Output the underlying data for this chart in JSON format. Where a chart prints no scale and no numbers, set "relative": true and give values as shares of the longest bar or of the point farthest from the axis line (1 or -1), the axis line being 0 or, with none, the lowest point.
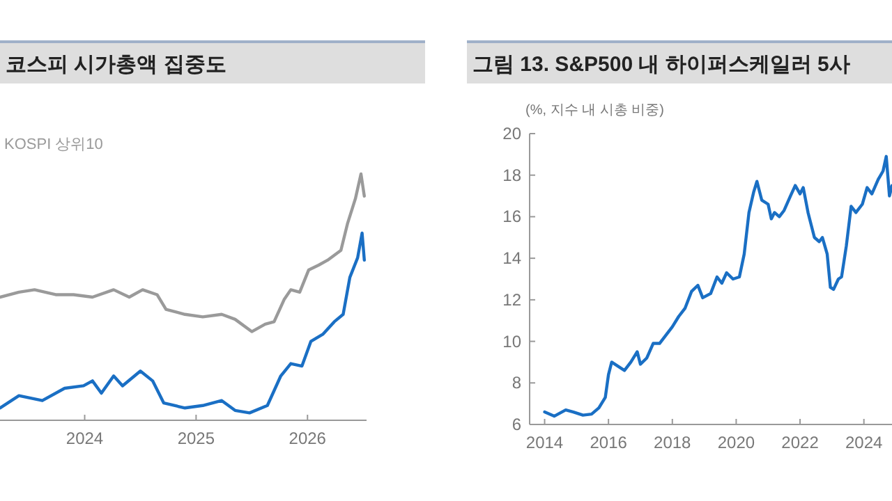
{
  "chart_data": [
    {
      "type": "line",
      "title": "코스피 시가총액 집중도",
      "relative": true,
      "legend": "top left",
      "xlim": [
        2023.24,
        2026.53
      ],
      "xticks": [
        2024,
        2025,
        2026
      ],
      "series": [
        {
          "name": "KOSPI 상위10",
          "color": "#9a9a9a",
          "x": [
            2023.24,
            2023.41,
            2023.55,
            2023.74,
            2023.9,
            2024.07,
            2024.26,
            2024.4,
            2024.52,
            2024.65,
            2024.73,
            2024.9,
            2025.06,
            2025.23,
            2025.35,
            2025.5,
            2025.62,
            2025.7,
            2025.79,
            2025.85,
            2025.93,
            2026.01,
            2026.1,
            2026.18,
            2026.3,
            2026.36,
            2026.43,
            2026.48,
            2026.51
          ],
          "values": [
            0.5,
            0.52,
            0.53,
            0.51,
            0.51,
            0.5,
            0.53,
            0.5,
            0.53,
            0.51,
            0.45,
            0.43,
            0.42,
            0.43,
            0.41,
            0.36,
            0.39,
            0.4,
            0.49,
            0.53,
            0.52,
            0.61,
            0.63,
            0.65,
            0.69,
            0.8,
            0.9,
            1,
            0.91
          ]
        },
        {
          "color": "#1a6fc4",
          "x": [
            2023.24,
            2023.41,
            2023.62,
            2023.82,
            2023.99,
            2024.07,
            2024.15,
            2024.26,
            2024.34,
            2024.5,
            2024.61,
            2024.71,
            2024.9,
            2025.06,
            2025.23,
            2025.35,
            2025.48,
            2025.64,
            2025.76,
            2025.85,
            2025.95,
            2026.03,
            2026.14,
            2026.24,
            2026.32,
            2026.38,
            2026.45,
            2026.49,
            2026.51
          ],
          "values": [
            0.05,
            0.1,
            0.08,
            0.13,
            0.14,
            0.16,
            0.11,
            0.18,
            0.14,
            0.2,
            0.16,
            0.07,
            0.05,
            0.06,
            0.08,
            0.04,
            0.03,
            0.06,
            0.18,
            0.23,
            0.22,
            0.32,
            0.35,
            0.4,
            0.43,
            0.58,
            0.66,
            0.76,
            0.65
          ]
        }
      ]
    },
    {
      "type": "line",
      "title": "그림 13. S&P500 내 하이퍼스케일러 5사",
      "ylabel": "(%, 지수 내 시총 비중)",
      "xlim": [
        2013.53,
        2024.88
      ],
      "xticks": [
        2014,
        2016,
        2018,
        2020,
        2022,
        2024
      ],
      "ylim": [
        6,
        20
      ],
      "yticks": [
        6,
        8,
        10,
        12,
        14,
        16,
        18,
        20
      ],
      "series": [
        {
          "color": "#1a6fc4",
          "x": [
            2014.0,
            2014.3,
            2014.66,
            2014.9,
            2015.2,
            2015.47,
            2015.7,
            2015.9,
            2016.0,
            2016.1,
            2016.3,
            2016.5,
            2016.7,
            2016.9,
            2017.0,
            2017.2,
            2017.4,
            2017.6,
            2017.8,
            2018.0,
            2018.2,
            2018.4,
            2018.6,
            2018.8,
            2018.95,
            2019.2,
            2019.4,
            2019.55,
            2019.7,
            2019.9,
            2020.1,
            2020.25,
            2020.4,
            2020.55,
            2020.65,
            2020.8,
            2021.0,
            2021.1,
            2021.2,
            2021.35,
            2021.5,
            2021.7,
            2021.85,
            2022.0,
            2022.1,
            2022.25,
            2022.45,
            2022.6,
            2022.7,
            2022.85,
            2022.95,
            2023.05,
            2023.2,
            2023.3,
            2023.45,
            2023.6,
            2023.75,
            2023.95,
            2024.1,
            2024.25,
            2024.45,
            2024.6,
            2024.7,
            2024.8,
            2024.88
          ],
          "values": [
            6.6,
            6.4,
            6.7,
            6.6,
            6.45,
            6.5,
            6.8,
            7.3,
            8.4,
            9.0,
            8.8,
            8.6,
            9.0,
            9.5,
            8.9,
            9.2,
            9.9,
            9.9,
            10.3,
            10.7,
            11.2,
            11.6,
            12.4,
            12.7,
            12.1,
            12.3,
            13.1,
            12.8,
            13.3,
            13.0,
            13.1,
            14.2,
            16.2,
            17.2,
            17.7,
            16.8,
            16.6,
            15.9,
            16.2,
            16.0,
            16.3,
            17.0,
            17.5,
            17.1,
            17.4,
            16.2,
            15.0,
            14.8,
            15.0,
            14.2,
            12.6,
            12.5,
            13.0,
            13.1,
            14.6,
            16.5,
            16.2,
            16.6,
            17.4,
            17.1,
            17.8,
            18.2,
            18.9,
            17.0,
            17.5
          ]
        }
      ]
    }
  ]
}
